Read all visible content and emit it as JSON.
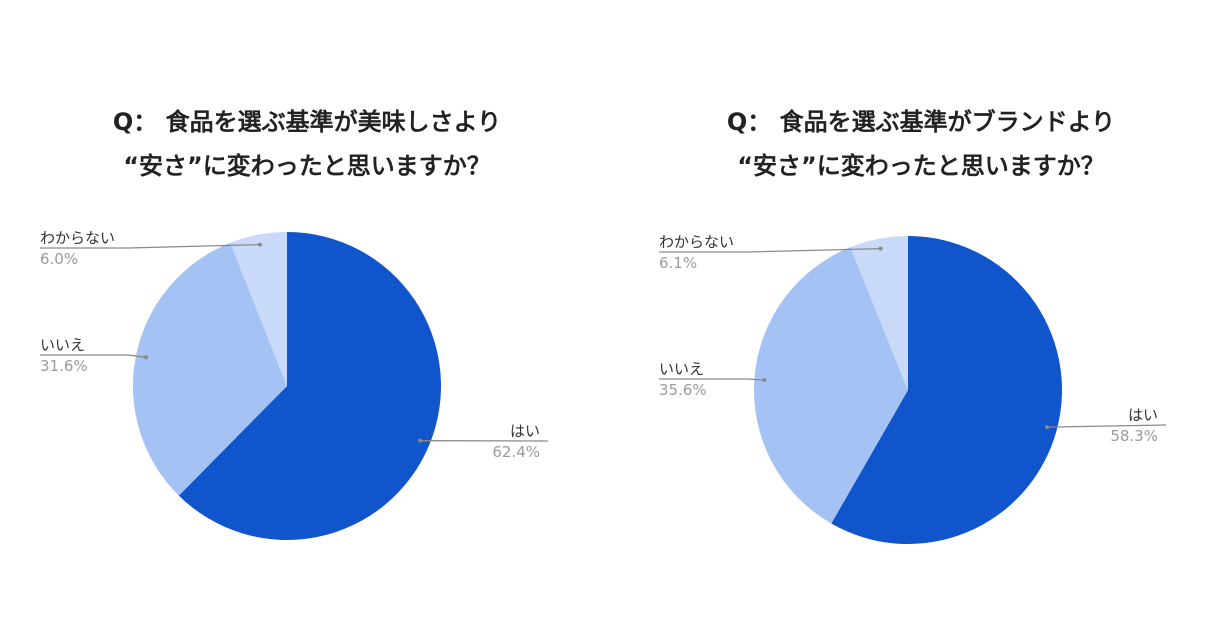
{
  "chart_data": [
    {
      "type": "pie",
      "title_lines": [
        "Q： 食品を選ぶ基準が美味しさより",
        "“安さ”に変わったと思いますか？"
      ],
      "slices": [
        {
          "label": "はい",
          "value": 62.4,
          "value_label": "62.4%",
          "color": "#1155cc"
        },
        {
          "label": "いいえ",
          "value": 31.6,
          "value_label": "31.6%",
          "color": "#a4c2f4"
        },
        {
          "label": "わからない",
          "value": 6.0,
          "value_label": "6.0%",
          "color": "#c9daf8"
        }
      ]
    },
    {
      "type": "pie",
      "title_lines": [
        "Q： 食品を選ぶ基準がブランドより",
        "“安さ”に変わったと思いますか？"
      ],
      "slices": [
        {
          "label": "はい",
          "value": 58.3,
          "value_label": "58.3%",
          "color": "#1155cc"
        },
        {
          "label": "いいえ",
          "value": 35.6,
          "value_label": "35.6%",
          "color": "#a4c2f4"
        },
        {
          "label": "わからない",
          "value": 6.1,
          "value_label": "6.1%",
          "color": "#c9daf8"
        }
      ]
    }
  ]
}
